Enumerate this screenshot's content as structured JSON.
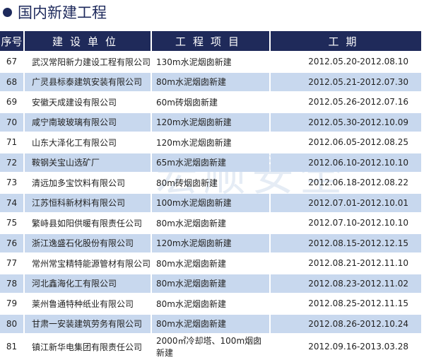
{
  "title": "国内新建工程",
  "headers": [
    "序号",
    "建设单位",
    "工程项目",
    "工期"
  ],
  "rows": [
    [
      "67",
      "武汉常阳新力建设工程有限公司",
      "130m水泥烟囱新建",
      "2012.05.20-2012.08.10"
    ],
    [
      "68",
      "广灵县标泰建筑安装有限公司",
      "80m水泥烟囱新建",
      "2012.05.21-2012.07.30"
    ],
    [
      "69",
      "安徽天成建设有限公司",
      "60m砖烟囱新建",
      "2012.05.26-2012.07.16"
    ],
    [
      "70",
      "咸宁南玻玻璃有限公司",
      "120m水泥烟囱新建",
      "2012.05.30-2012.10.09"
    ],
    [
      "71",
      "山东大泽化工有限公司",
      "120m水泥烟囱新建",
      "2012.06.05-2012.08.25"
    ],
    [
      "72",
      "鞍钢关宝山选矿厂",
      "65m水泥烟囱新建",
      "2012.06.10-2012.10.10"
    ],
    [
      "73",
      "清远加多宝饮料有限公司",
      "80m砖烟囱新建",
      "2012.06.18-2012.08.22"
    ],
    [
      "74",
      "江苏恒科新材料有限公司",
      "100m水泥烟囱新建",
      "2012.07.01-2012.10.01"
    ],
    [
      "75",
      "繁峙县如阳供暖有限责任公司",
      "80m水泥烟囱新建",
      "2012.07.10-2012.10.10"
    ],
    [
      "76",
      "浙江逸盛石化股份有限公司",
      "120m水泥烟囱新建",
      "2012.08.15-2012.12.15"
    ],
    [
      "77",
      "常州常宝精特能源管材有限公司",
      "80m水泥烟囱新建",
      "2012.08.21-2012.11.10"
    ],
    [
      "78",
      "河北鑫海化工有限公司",
      "80m水泥烟囱新建",
      "2012.08.23-2012.11.02"
    ],
    [
      "79",
      "莱州鲁通特种纸业有限公司",
      "80m水泥烟囱新建",
      "2012.08.25-2012.11.15"
    ],
    [
      "80",
      "甘肃一安装建筑劳务有限公司",
      "80m水泥烟囱新建",
      "2012.08.26-2012.10.24"
    ],
    [
      "81",
      "镇江新华电集团有限责任公司",
      "2000㎡冷却塔、100m烟囱新建",
      "2012.09.16-2013.03.28"
    ]
  ],
  "watermark": "宏顺安全"
}
